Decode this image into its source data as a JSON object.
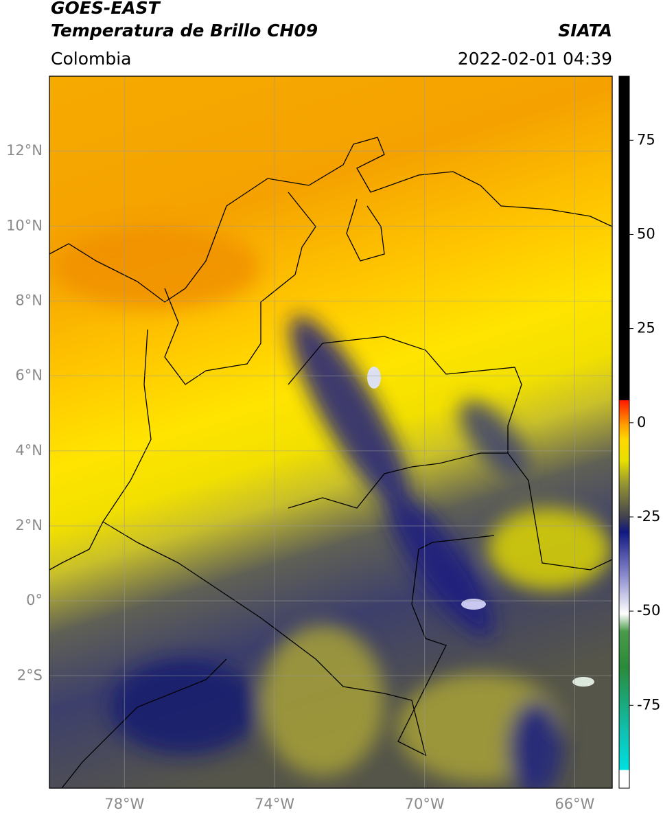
{
  "chart_data": {
    "type": "map",
    "title": "GOES-EAST",
    "subtitle": "Temperatura de Brillo CH09",
    "source": "SIATA",
    "region": "Colombia",
    "datetime": "2022-02-01 04:39",
    "xlim": [
      -80,
      -65
    ],
    "ylim": [
      -5,
      14
    ],
    "xticks": [
      {
        "value": -78,
        "label": "78°W"
      },
      {
        "value": -74,
        "label": "74°W"
      },
      {
        "value": -70,
        "label": "70°W"
      },
      {
        "value": -66,
        "label": "66°W"
      }
    ],
    "yticks": [
      {
        "value": -2,
        "label": "2°S"
      },
      {
        "value": 0,
        "label": "0°"
      },
      {
        "value": 2,
        "label": "2°N"
      },
      {
        "value": 4,
        "label": "4°N"
      },
      {
        "value": 6,
        "label": "6°N"
      },
      {
        "value": 8,
        "label": "8°N"
      },
      {
        "value": 10,
        "label": "10°N"
      },
      {
        "value": 12,
        "label": "12°N"
      }
    ],
    "grid": true,
    "colorbar": {
      "lim": [
        -97,
        92
      ],
      "ticks": [
        -75,
        -50,
        -25,
        0,
        25,
        50,
        75
      ]
    }
  }
}
